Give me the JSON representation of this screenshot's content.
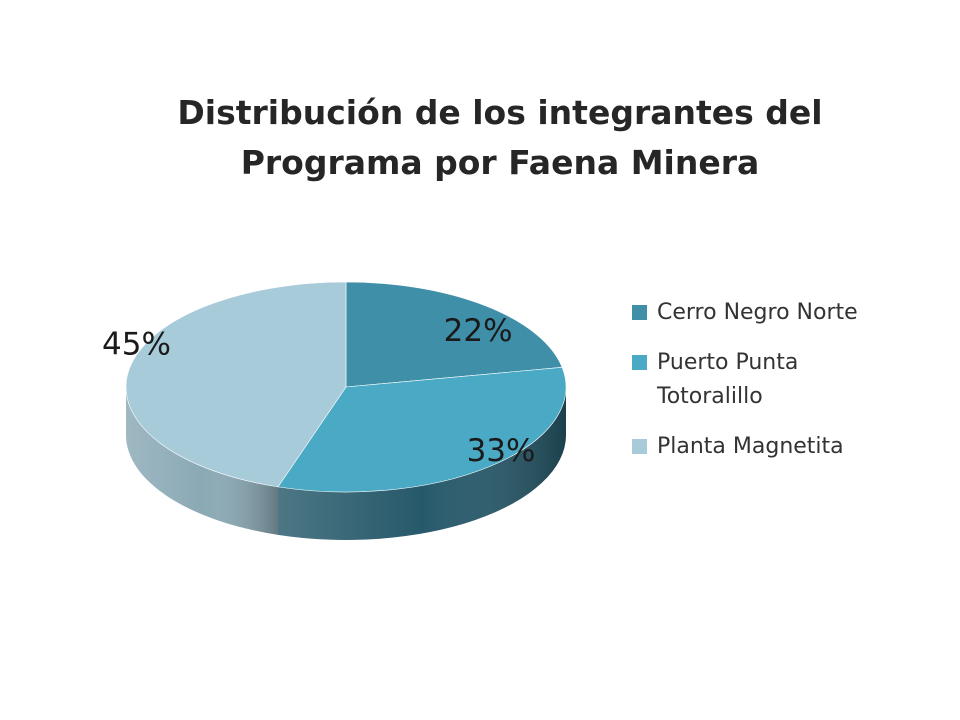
{
  "chart_data": {
    "type": "pie",
    "title": "Distribución de los integrantes del Programa por Faena Minera",
    "title_lines": [
      "Distribución de los integrantes del",
      "Programa por Faena Minera"
    ],
    "three_d": true,
    "legend_position": "right",
    "categories": [
      "Cerro Negro Norte",
      "Puerto Punta Totoralillo",
      "Planta Magnetita"
    ],
    "values": [
      22,
      33,
      45
    ],
    "labels": [
      "22%",
      "33%",
      "45%"
    ],
    "colors": [
      "#3f8fa8",
      "#4aaac6",
      "#a7cbd9"
    ],
    "side_colors": [
      "#2a6477",
      "#26596a",
      "#8aa9b5"
    ]
  }
}
